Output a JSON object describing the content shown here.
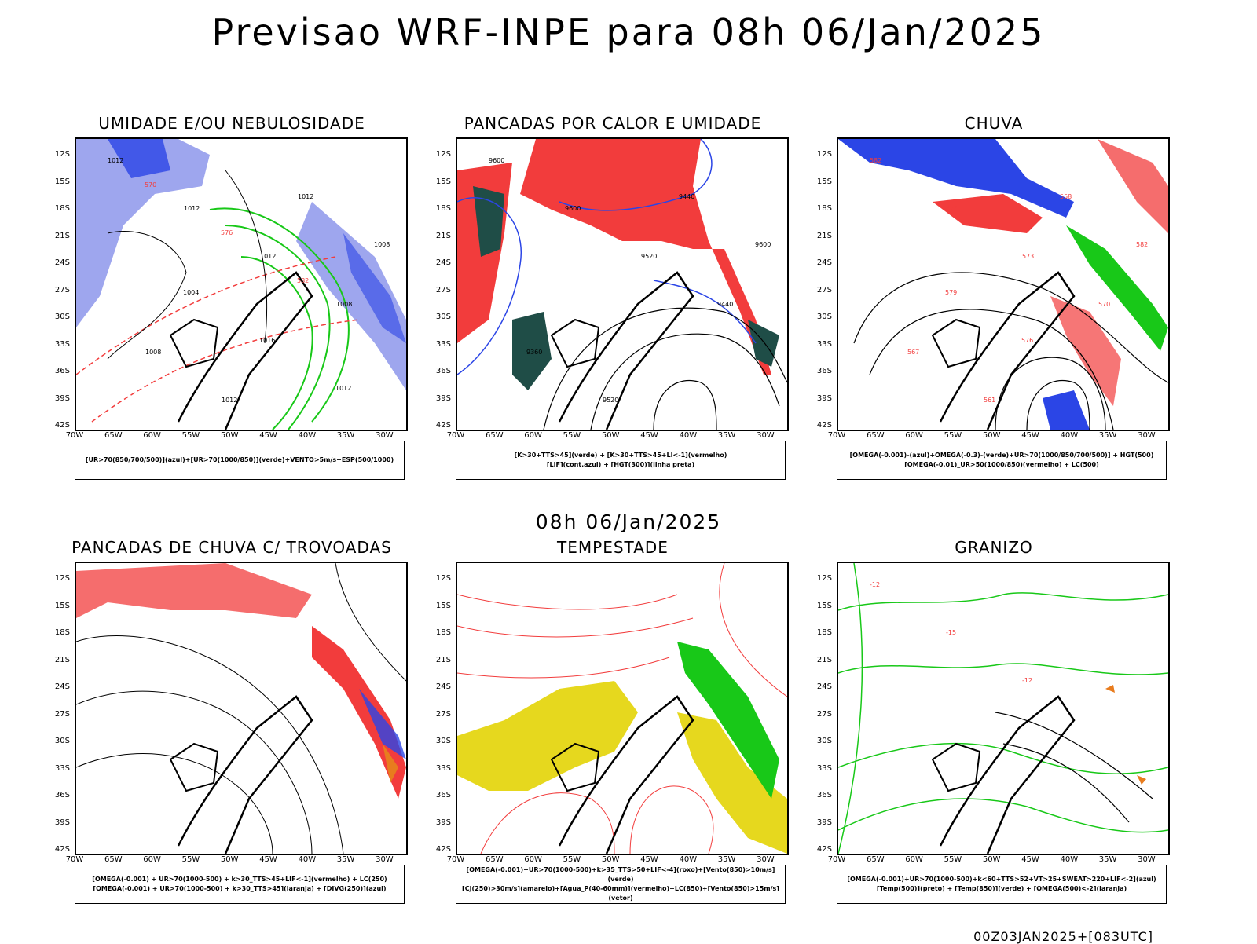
{
  "header": {
    "title": "Previsao WRF-INPE  para 08h 06/Jan/2025"
  },
  "middle_label": "08h 06/Jan/2025",
  "footer": {
    "run_stamp": "00Z03JAN2025+[083UTC]"
  },
  "axes": {
    "lat_labels": [
      "12S",
      "15S",
      "18S",
      "21S",
      "24S",
      "27S",
      "30S",
      "33S",
      "36S",
      "39S",
      "42S"
    ],
    "lon_labels": [
      "70W",
      "65W",
      "60W",
      "55W",
      "50W",
      "45W",
      "40W",
      "35W",
      "30W"
    ]
  },
  "colors": {
    "blue": "#2b45e6",
    "light_blue": "#9ea6ee",
    "green": "#18c818",
    "red": "#f23c3c",
    "dark_green": "#1f4d47",
    "yellow": "#e6d81e",
    "orange": "#e87c1e",
    "purple": "#b000c8"
  },
  "panels": [
    {
      "title": "UMIDADE E/OU NEBULOSIDADE",
      "legend": [
        "[UR>70(850/700/500)](azul)+[UR>70(1000/850)](verde)+VENTO>5m/s+ESP(500/1000)"
      ],
      "contour_labels": [
        "1012",
        "1012",
        "1012",
        "1008",
        "1008",
        "1012",
        "1012",
        "1008",
        "1004",
        "1016",
        "1012",
        "570",
        "576",
        "582"
      ]
    },
    {
      "title": "PANCADAS POR CALOR E UMIDADE",
      "legend": [
        "[K>30+TTS>45](verde) + [K>30+TTS>45+LI<-1](vermelho)",
        "[LIF](cont.azul) + [HGT(300)](linha preta)"
      ],
      "contour_labels": [
        "9600",
        "9600",
        "9520",
        "9440",
        "9360",
        "9520",
        "9440",
        "9600"
      ]
    },
    {
      "title": "CHUVA",
      "legend": [
        "[OMEGA(-0.001)-(azul)+OMEGA(-0.3)-(verde)+UR>70(1000/850/700/500)] + HGT(500)",
        "[OMEGA(-0.01)_UR>50(1000/850)(vermelho) + LC(500)"
      ],
      "contour_labels": [
        "582",
        "576",
        "573",
        "570",
        "567",
        "561",
        "558",
        "582",
        "579",
        "576"
      ]
    },
    {
      "title": "PANCADAS DE CHUVA C/ TROVOADAS",
      "legend": [
        "[OMEGA(-0.001) + UR>70(1000-500) + k>30_TTS>45+LIF<-1](vermelho) + LC(250)",
        "[OMEGA(-0.001) + UR>70(1000-500) + k>30_TTS>45](laranja) + [DIVG(250)](azul)"
      ],
      "contour_labels": []
    },
    {
      "title": "TEMPESTADE",
      "legend": [
        "[OMEGA(-0.001)+UR>70(1000-500)+k>35_TTS>50+LIF<-4](roxo)+[Vento(850)>10m/s](verde)",
        "[CJ(250)>30m/s](amarelo)+[Agua_P(40-60mm)](vermelho)+LC(850)+[Vento(850)>15m/s](vetor)"
      ],
      "contour_labels": []
    },
    {
      "title": "GRANIZO",
      "legend": [
        "[OMEGA(-0.001)+UR>70(1000-500)+k<60+TTS>52+VT>25+SWEAT>220+LIF<-2](azul)",
        "[Temp(500)](preto) + [Temp(850)](verde) + [OMEGA(500)<-2](laranja)"
      ],
      "contour_labels": [
        "-12",
        "-15",
        "-12"
      ]
    }
  ]
}
